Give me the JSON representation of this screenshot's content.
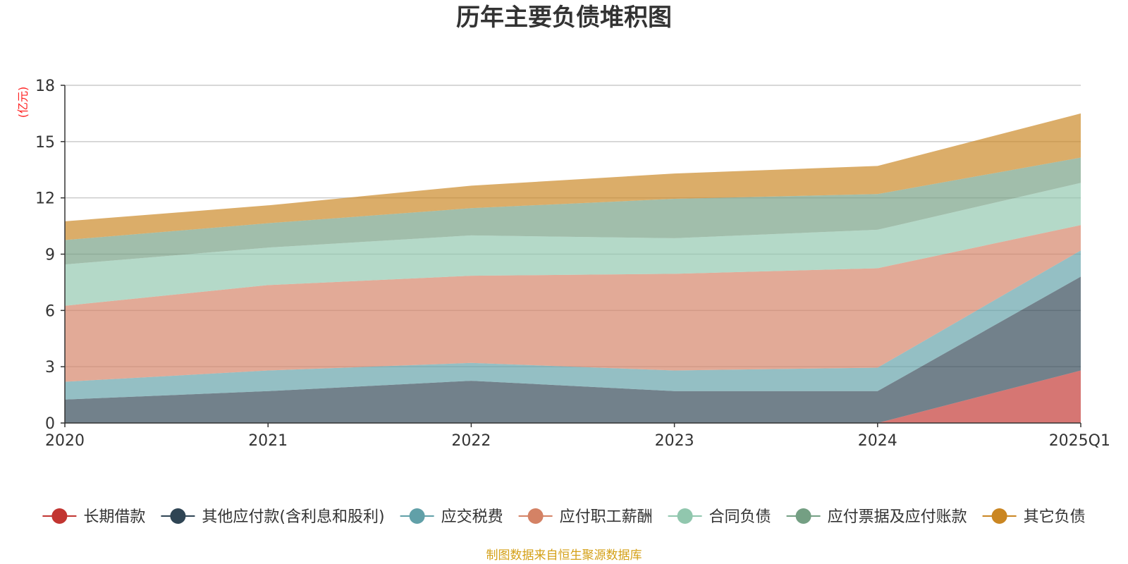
{
  "chart_data": {
    "type": "area",
    "title": "历年主要负债堆积图",
    "unit_label": "(亿元)",
    "x": [
      "2020",
      "2021",
      "2022",
      "2023",
      "2024",
      "2025Q1"
    ],
    "ylim": [
      0,
      18
    ],
    "yticks": [
      0,
      3,
      6,
      9,
      12,
      15,
      18
    ],
    "grid": true,
    "stacked": true,
    "legend_position": "bottom",
    "series": [
      {
        "name": "长期借款",
        "color": "#c23531",
        "values": [
          0,
          0,
          0,
          0,
          0,
          2.8
        ]
      },
      {
        "name": "其他应付款(含利息和股利)",
        "color": "#2f4554",
        "values": [
          1.25,
          1.7,
          2.25,
          1.7,
          1.7,
          5.0
        ]
      },
      {
        "name": "应交税费",
        "color": "#61a0a8",
        "values": [
          0.95,
          1.1,
          0.95,
          1.1,
          1.25,
          1.4
        ]
      },
      {
        "name": "应付职工薪酬",
        "color": "#d48265",
        "values": [
          4.05,
          4.55,
          4.65,
          5.15,
          5.3,
          1.35
        ]
      },
      {
        "name": "合同负债",
        "color": "#91c7ae",
        "values": [
          2.2,
          2.0,
          2.15,
          1.9,
          2.05,
          2.25
        ]
      },
      {
        "name": "应付票据及应付账款",
        "color": "#749f83",
        "values": [
          1.3,
          1.3,
          1.45,
          2.1,
          1.9,
          1.35
        ]
      },
      {
        "name": "其它负债",
        "color": "#ca8622",
        "values": [
          1.0,
          0.95,
          1.2,
          1.35,
          1.5,
          2.35
        ]
      }
    ],
    "source_note": "制图数据来自恒生聚源数据库"
  }
}
